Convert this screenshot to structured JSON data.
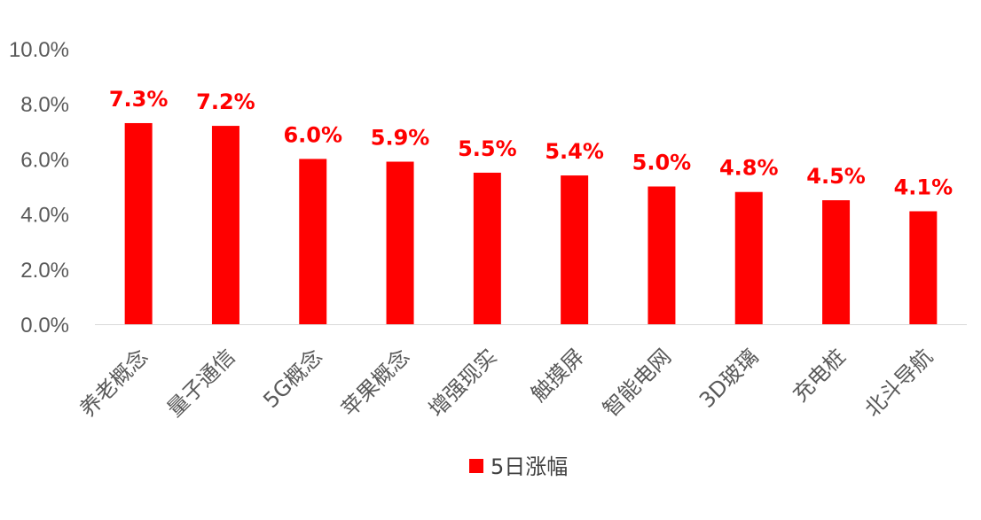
{
  "chart_data": {
    "type": "bar",
    "categories": [
      "养老概念",
      "量子通信",
      "5G概念",
      "苹果概念",
      "增强现实",
      "触摸屏",
      "智能电网",
      "3D玻璃",
      "充电桩",
      "北斗导航"
    ],
    "series": [
      {
        "name": "5日涨幅",
        "values": [
          7.3,
          7.2,
          6.0,
          5.9,
          5.5,
          5.4,
          5.0,
          4.8,
          4.5,
          4.1
        ],
        "data_labels": [
          "7.3%",
          "7.2%",
          "6.0%",
          "5.9%",
          "5.5%",
          "5.4%",
          "5.0%",
          "4.8%",
          "4.5%",
          "4.1%"
        ]
      }
    ],
    "yticks": [
      "0.0%",
      "2.0%",
      "4.0%",
      "6.0%",
      "8.0%",
      "10.0%"
    ],
    "ylim": [
      0,
      10
    ],
    "grid": false,
    "legend_position": "bottom",
    "colors": {
      "bar": "#ff0000",
      "data_label": "#ff0000",
      "axis": "#d9d9d9"
    }
  }
}
